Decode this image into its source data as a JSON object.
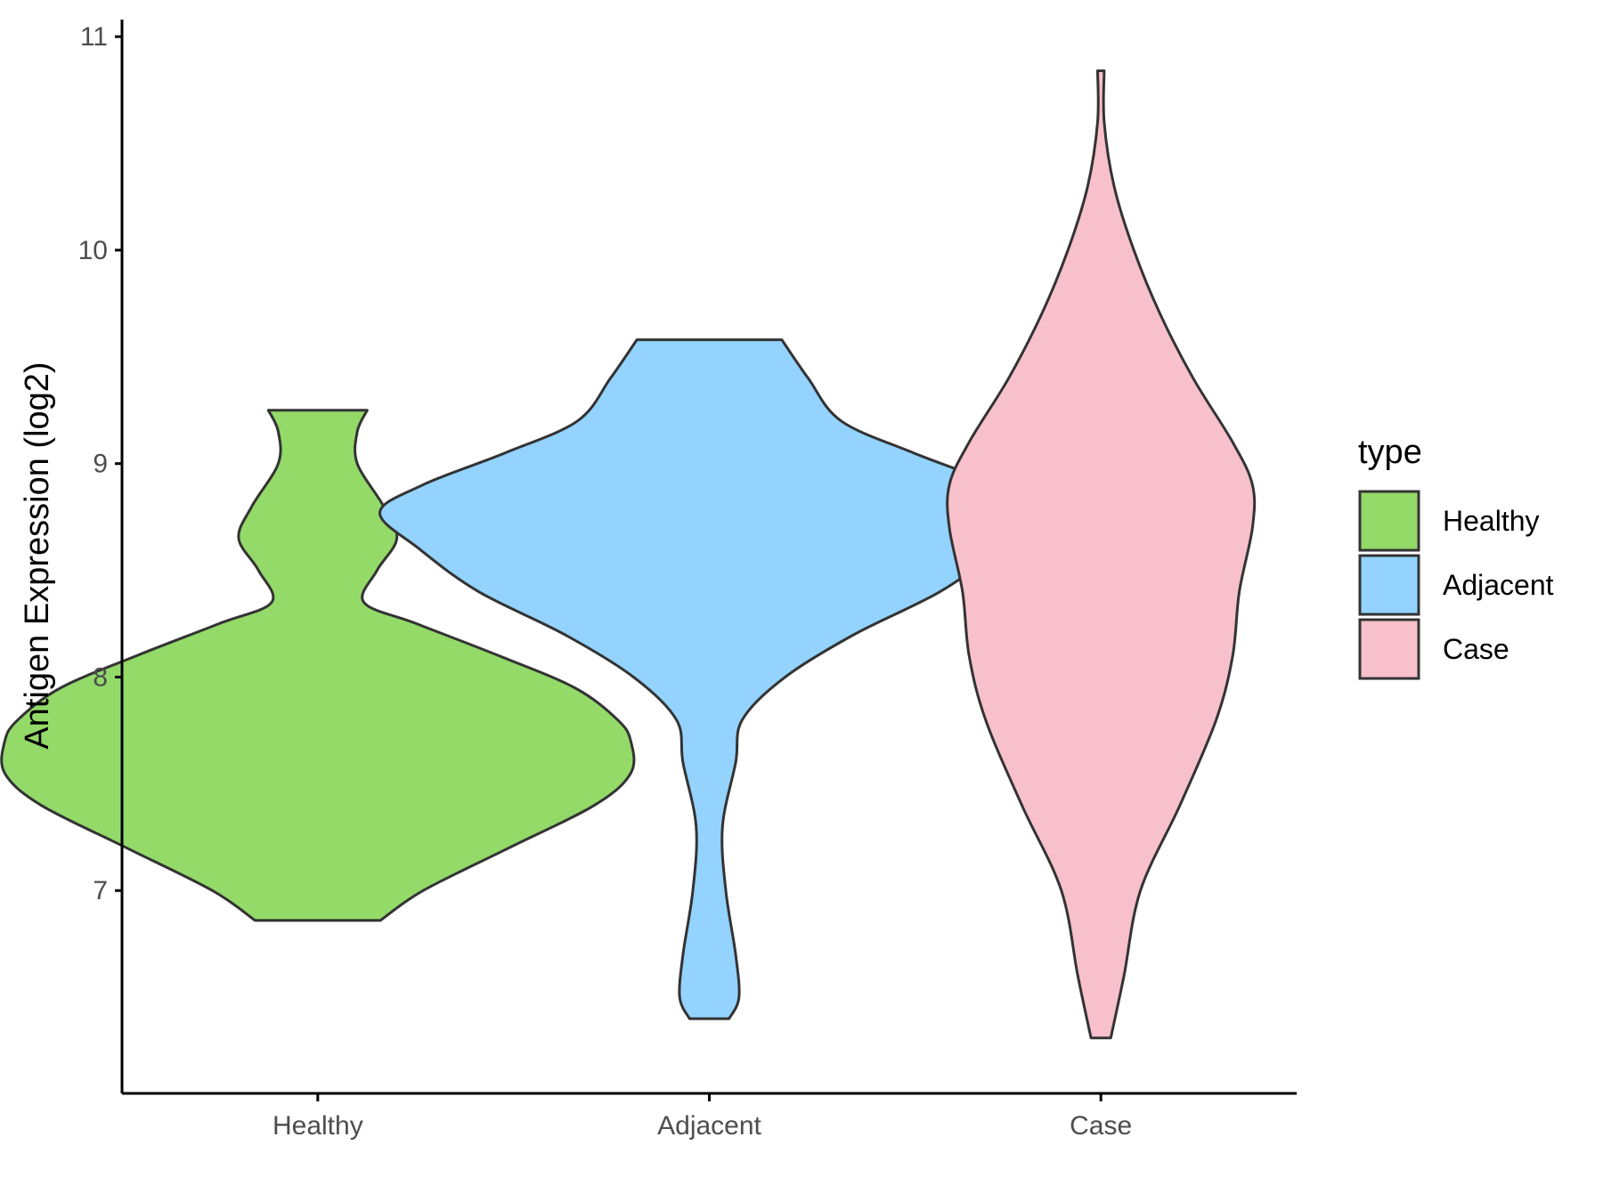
{
  "chart_data": {
    "type": "violin",
    "xlabel": "",
    "ylabel": "Antigen Expression (log2)",
    "ylim": [
      6.05,
      11.08
    ],
    "yticks": [
      "7",
      "8",
      "9",
      "10",
      "11"
    ],
    "categories": [
      "Healthy",
      "Adjacent",
      "Case"
    ],
    "grid": false,
    "legend": {
      "title": "type",
      "placement": "right",
      "entries": [
        "Healthy",
        "Adjacent",
        "Case"
      ]
    },
    "colors": {
      "Healthy": "#93da69",
      "Adjacent": "#93d3fe",
      "Case": "#f7c0cb",
      "outline": "#333333"
    },
    "series": [
      {
        "category": "Healthy",
        "min": 6.86,
        "max": 9.25,
        "density": [
          [
            6.86,
            0.19
          ],
          [
            7.0,
            0.32
          ],
          [
            7.2,
            0.58
          ],
          [
            7.4,
            0.84
          ],
          [
            7.55,
            0.95
          ],
          [
            7.7,
            0.95
          ],
          [
            7.8,
            0.91
          ],
          [
            7.95,
            0.78
          ],
          [
            8.1,
            0.55
          ],
          [
            8.25,
            0.3
          ],
          [
            8.35,
            0.14
          ],
          [
            8.5,
            0.18
          ],
          [
            8.65,
            0.24
          ],
          [
            8.8,
            0.2
          ],
          [
            9.0,
            0.12
          ],
          [
            9.15,
            0.12
          ],
          [
            9.25,
            0.15
          ]
        ]
      },
      {
        "category": "Adjacent",
        "min": 6.4,
        "max": 9.58,
        "density": [
          [
            6.4,
            0.06
          ],
          [
            6.5,
            0.09
          ],
          [
            6.7,
            0.08
          ],
          [
            7.0,
            0.05
          ],
          [
            7.3,
            0.04
          ],
          [
            7.6,
            0.08
          ],
          [
            7.8,
            0.1
          ],
          [
            8.0,
            0.23
          ],
          [
            8.2,
            0.44
          ],
          [
            8.4,
            0.7
          ],
          [
            8.6,
            0.88
          ],
          [
            8.77,
            1.0
          ],
          [
            8.9,
            0.87
          ],
          [
            9.05,
            0.62
          ],
          [
            9.2,
            0.4
          ],
          [
            9.4,
            0.3
          ],
          [
            9.58,
            0.22
          ]
        ]
      },
      {
        "category": "Case",
        "min": 6.31,
        "max": 10.84,
        "density": [
          [
            6.31,
            0.03
          ],
          [
            6.6,
            0.07
          ],
          [
            7.0,
            0.12
          ],
          [
            7.4,
            0.24
          ],
          [
            7.8,
            0.35
          ],
          [
            8.1,
            0.4
          ],
          [
            8.4,
            0.42
          ],
          [
            8.7,
            0.46
          ],
          [
            8.9,
            0.46
          ],
          [
            9.1,
            0.4
          ],
          [
            9.4,
            0.28
          ],
          [
            9.7,
            0.18
          ],
          [
            10.0,
            0.1
          ],
          [
            10.3,
            0.04
          ],
          [
            10.6,
            0.01
          ],
          [
            10.84,
            0.01
          ]
        ]
      }
    ]
  }
}
